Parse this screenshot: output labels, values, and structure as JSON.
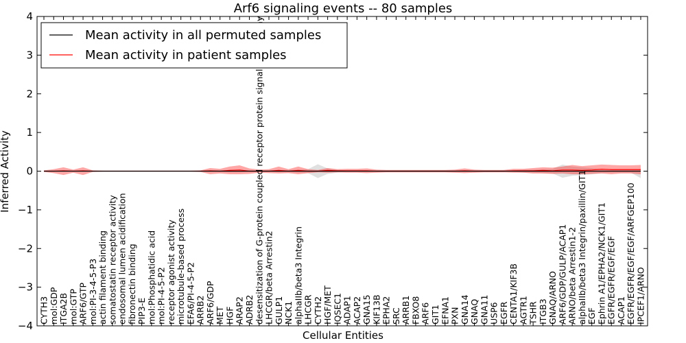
{
  "chart_data": {
    "type": "line",
    "title": "Arf6 signaling events -- 80 samples",
    "xlabel": "Cellular Entities",
    "ylabel": "Inferred Activity",
    "ylim": [
      -4,
      4
    ],
    "yticks": [
      4,
      3,
      2,
      1,
      0,
      -1,
      -2,
      -3,
      -4
    ],
    "ytick_labels": [
      "4",
      "3",
      "2",
      "1",
      "0",
      "−1",
      "−2",
      "−3",
      "−4"
    ],
    "legend_position": "top-left",
    "categories": [
      "CYTH3",
      "mol:GDP",
      "ITGA2B",
      "mol:GTP",
      "ARF6/GTP",
      "mol:PI-3-4-5-P3",
      "actin filament binding",
      "somatostatin receptor activity",
      "endosomal lumen acidification",
      "fibronectin binding",
      "PIP3-E",
      "mol:Phosphatidic acid",
      "mol:PI-4-5-P2",
      "receptor agonist activity",
      "microtubule-based process",
      "EFA6/PI-4-5-P2",
      "ARRB2",
      "ARF6/GDP",
      "MET",
      "HGF",
      "ARAP2",
      "ADRB2",
      "desensitization of G-protein coupled receptor protein signaling pathway",
      "LHCGR/beta Arrestin2",
      "GULP1",
      "NCK1",
      "alphaIIb/beta3 Integrin",
      "LHCGR",
      "CYTH2",
      "HGF/MET",
      "IQSEC1",
      "ADAP1",
      "ACAP2",
      "GNA15",
      "KIF13B",
      "EPHA2",
      "SRC",
      "ARRB1",
      "FBXO8",
      "ARF6",
      "GIT1",
      "EFNA1",
      "PXN",
      "GNA14",
      "GNAQ",
      "GNA11",
      "USP6",
      "EGFR",
      "CENTA1/KIF3B",
      "AGTR1",
      "TSHR",
      "ITGB3",
      "GNAQ/ARNO",
      "ARF6/GDP/GULP/ACAP1",
      "ARNO/beta Arrestin1-2",
      "alphaIIb/beta3 Integrin/paxillin/GIT1",
      "EGF",
      "Ephrin A1/EPHA2/NCK1/GIT1",
      "EGFR/EGFR/EGF/EGF",
      "ACAP1",
      "EGFR/EGFR/EGF/EGF/ARFGEP100",
      "IPCEF1/ARNO"
    ],
    "series": [
      {
        "name": "Mean activity in all permuted samples",
        "color": "#000000",
        "values": [
          0,
          0,
          0,
          0,
          0,
          0,
          0,
          0,
          0,
          0,
          0,
          0,
          0,
          0,
          0,
          0,
          0,
          0,
          0,
          0,
          0,
          0,
          0,
          0,
          0,
          0,
          0,
          0,
          0,
          0,
          0,
          0,
          0,
          0,
          0,
          0,
          0,
          0,
          0,
          0,
          0,
          0,
          0,
          0,
          0,
          0,
          0,
          0,
          0,
          0,
          0,
          0,
          0,
          0,
          0,
          0,
          0,
          0,
          0,
          0,
          0,
          0
        ],
        "band_upper": [
          0.01,
          0.01,
          0.01,
          0.01,
          0.01,
          0.01,
          0.01,
          0.01,
          0.01,
          0.01,
          0.01,
          0.01,
          0.01,
          0.01,
          0.01,
          0.01,
          0.01,
          0.02,
          0.02,
          0.03,
          0.03,
          0.02,
          0.02,
          0.02,
          0.03,
          0.03,
          0.04,
          0.05,
          0.18,
          0.07,
          0.04,
          0.02,
          0.02,
          0.02,
          0.02,
          0.02,
          0.02,
          0.02,
          0.02,
          0.02,
          0.02,
          0.02,
          0.02,
          0.02,
          0.02,
          0.02,
          0.02,
          0.02,
          0.02,
          0.04,
          0.04,
          0.05,
          0.06,
          0.17,
          0.12,
          0.1,
          0.08,
          0.05,
          0.04,
          0.04,
          0.04,
          0.04
        ],
        "band_lower": [
          -0.01,
          -0.01,
          -0.01,
          -0.01,
          -0.01,
          -0.01,
          -0.01,
          -0.01,
          -0.01,
          -0.01,
          -0.01,
          -0.01,
          -0.01,
          -0.01,
          -0.01,
          -0.01,
          -0.01,
          -0.02,
          -0.02,
          -0.03,
          -0.03,
          -0.02,
          -0.02,
          -0.02,
          -0.03,
          -0.03,
          -0.04,
          -0.05,
          -0.18,
          -0.07,
          -0.04,
          -0.02,
          -0.02,
          -0.02,
          -0.02,
          -0.02,
          -0.02,
          -0.02,
          -0.02,
          -0.02,
          -0.02,
          -0.02,
          -0.02,
          -0.02,
          -0.02,
          -0.02,
          -0.02,
          -0.02,
          -0.02,
          -0.04,
          -0.04,
          -0.05,
          -0.06,
          -0.17,
          -0.12,
          -0.1,
          -0.08,
          -0.05,
          -0.04,
          -0.04,
          -0.04,
          -0.18
        ]
      },
      {
        "name": "Mean activity in patient samples",
        "color": "#ff0000",
        "values": [
          0,
          0,
          0.01,
          0,
          0.01,
          0,
          0,
          0,
          0,
          0,
          0,
          0,
          0,
          0,
          0,
          0,
          0,
          0.01,
          0,
          0.02,
          0.03,
          0,
          0,
          0,
          0.02,
          0,
          0.02,
          0,
          0,
          0.02,
          0.01,
          0.01,
          0.01,
          0.01,
          0,
          0,
          0,
          0,
          0,
          0,
          0,
          0,
          0,
          0.01,
          0,
          0,
          0,
          0,
          0.01,
          0.01,
          0.01,
          0.02,
          0.01,
          0.03,
          0.03,
          0.02,
          0.03,
          0.05,
          0.04,
          0.04,
          0.04,
          0.04
        ],
        "band_upper": [
          0.02,
          0.05,
          0.1,
          0.04,
          0.1,
          0.02,
          0.01,
          0.01,
          0.01,
          0.01,
          0.01,
          0.01,
          0.01,
          0.01,
          0.01,
          0.01,
          0.02,
          0.08,
          0.06,
          0.12,
          0.15,
          0.07,
          0.04,
          0.05,
          0.12,
          0.05,
          0.12,
          0.05,
          0.03,
          0.08,
          0.05,
          0.06,
          0.06,
          0.07,
          0.04,
          0.03,
          0.03,
          0.03,
          0.03,
          0.03,
          0.03,
          0.03,
          0.04,
          0.07,
          0.04,
          0.03,
          0.03,
          0.03,
          0.06,
          0.06,
          0.08,
          0.1,
          0.09,
          0.12,
          0.16,
          0.13,
          0.15,
          0.17,
          0.16,
          0.15,
          0.15,
          0.16
        ],
        "band_lower": [
          -0.02,
          -0.05,
          -0.1,
          -0.04,
          -0.1,
          -0.02,
          -0.01,
          -0.01,
          -0.01,
          -0.01,
          -0.01,
          -0.01,
          -0.01,
          -0.01,
          -0.01,
          -0.01,
          -0.02,
          -0.08,
          -0.06,
          -0.08,
          -0.08,
          -0.07,
          -0.04,
          -0.05,
          -0.06,
          -0.05,
          -0.08,
          -0.05,
          -0.03,
          -0.04,
          -0.03,
          -0.04,
          -0.04,
          -0.05,
          -0.04,
          -0.03,
          -0.03,
          -0.03,
          -0.03,
          -0.03,
          -0.03,
          -0.03,
          -0.04,
          -0.05,
          -0.04,
          -0.03,
          -0.03,
          -0.03,
          -0.04,
          -0.04,
          -0.06,
          -0.06,
          -0.07,
          -0.06,
          -0.08,
          -0.08,
          -0.07,
          -0.06,
          -0.08,
          -0.06,
          -0.06,
          -0.08
        ]
      }
    ]
  }
}
